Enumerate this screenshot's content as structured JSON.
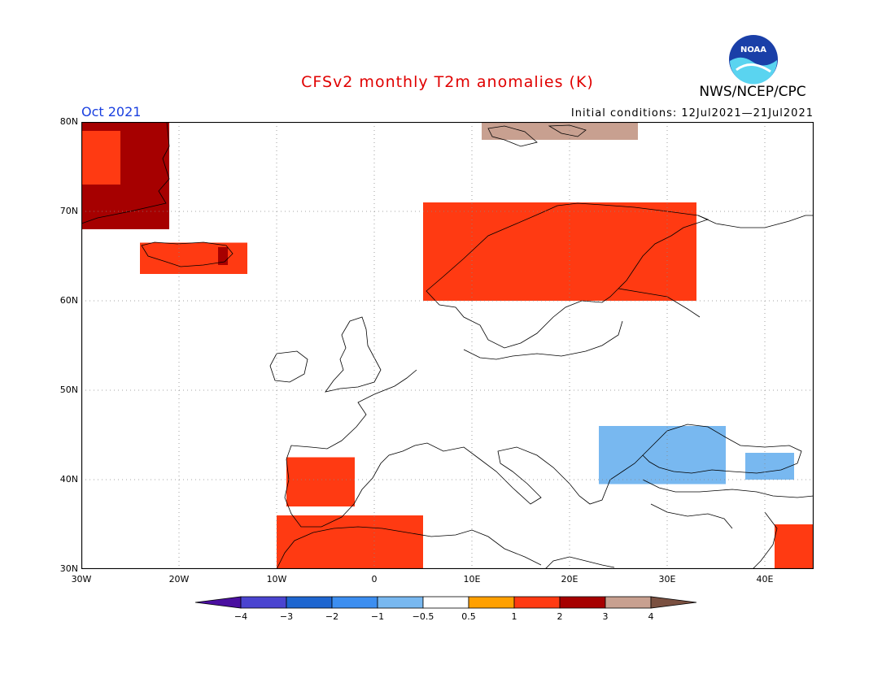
{
  "header": {
    "title": "CFSv2 monthly T2m anomalies (K)",
    "month": "Oct 2021",
    "initial_conditions": "Initial conditions: 12Jul2021—21Jul2021",
    "agency": "NWS/NCEP/CPC",
    "logo_text": "NOAA"
  },
  "map": {
    "lon_range": [
      -30,
      45
    ],
    "lat_range": [
      30,
      80
    ],
    "lat_labels": [
      "80N",
      "70N",
      "60N",
      "50N",
      "40N",
      "30N"
    ],
    "lon_labels": [
      "30W",
      "20W",
      "10W",
      "0",
      "10E",
      "20E",
      "30E",
      "40E"
    ],
    "grid": "dotted",
    "anomaly_regions": [
      {
        "lon": [
          -30,
          -21
        ],
        "lat": [
          68,
          80
        ],
        "anomaly": 2.0,
        "area": "East Greenland"
      },
      {
        "lon": [
          -30,
          -26
        ],
        "lat": [
          73,
          79
        ],
        "anomaly": 1.2,
        "area": "East Greenland coast"
      },
      {
        "lon": [
          -24,
          -13
        ],
        "lat": [
          63,
          66.5
        ],
        "anomaly": 1.0,
        "area": "Iceland"
      },
      {
        "lon": [
          -16,
          -15
        ],
        "lat": [
          64,
          66
        ],
        "anomaly": 2.0,
        "area": "East Iceland"
      },
      {
        "lon": [
          11,
          27
        ],
        "lat": [
          78,
          80
        ],
        "anomaly": 3.0,
        "area": "Svalbard"
      },
      {
        "lon": [
          5,
          33
        ],
        "lat": [
          60,
          71
        ],
        "anomaly": 1.0,
        "area": "Scandinavia"
      },
      {
        "lon": [
          -9,
          -2
        ],
        "lat": [
          37,
          42.5
        ],
        "anomaly": 1.0,
        "area": "Iberia"
      },
      {
        "lon": [
          -10,
          5
        ],
        "lat": [
          30,
          36
        ],
        "anomaly": 1.0,
        "area": "North Africa"
      },
      {
        "lon": [
          23,
          36
        ],
        "lat": [
          39.5,
          46
        ],
        "anomaly": -0.7,
        "area": "Black Sea / Turkey"
      },
      {
        "lon": [
          38,
          43
        ],
        "lat": [
          40,
          43
        ],
        "anomaly": -0.7,
        "area": "Caucasus"
      },
      {
        "lon": [
          41,
          45
        ],
        "lat": [
          30,
          35
        ],
        "anomaly": 1.0,
        "area": "Iraq"
      }
    ]
  },
  "colorbar": {
    "colors": [
      "#4a0fa0",
      "#4a44d0",
      "#1e66d0",
      "#3c8ef0",
      "#78b8f0",
      "#ffffff",
      "#ffa000",
      "#ff3a12",
      "#a60000",
      "#c8a090",
      "#7a5040"
    ],
    "labels": [
      "−4",
      "−3",
      "−2",
      "−1",
      "−0.5",
      "0.5",
      "1",
      "2",
      "3",
      "4"
    ]
  }
}
